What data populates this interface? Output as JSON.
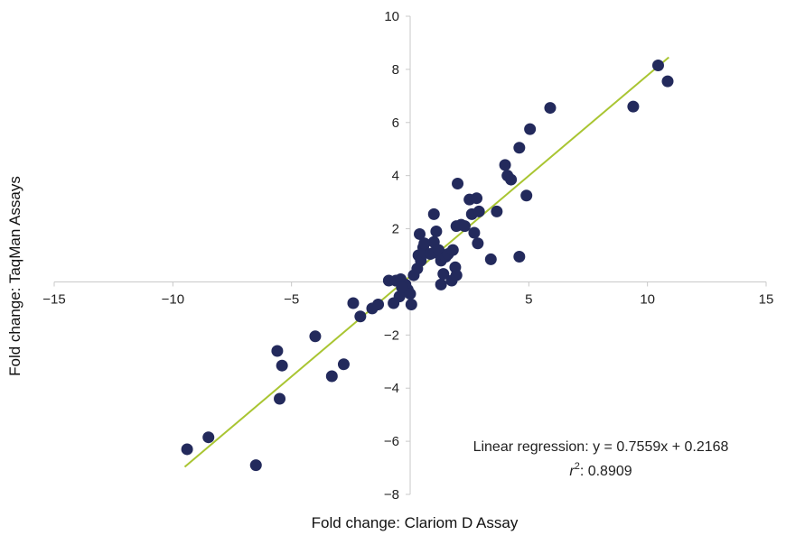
{
  "chart_data": {
    "type": "scatter",
    "title": "",
    "xlabel": "Fold change: Clariom D Assay",
    "ylabel": "Fold change: TaqMan Assays",
    "xlim": [
      -15,
      15
    ],
    "ylim": [
      -8,
      10
    ],
    "xticks": [
      -15,
      -10,
      -5,
      0,
      5,
      10,
      15
    ],
    "yticks": [
      -8,
      -6,
      -4,
      -2,
      0,
      2,
      4,
      6,
      8,
      10
    ],
    "xtick_labels": [
      "−15",
      "−10",
      "−5",
      "",
      "5",
      "10",
      "15"
    ],
    "ytick_labels": [
      "−8",
      "−6",
      "−4",
      "−2",
      "0",
      "2",
      "4",
      "6",
      "8",
      "10"
    ],
    "grid": false,
    "colors": {
      "points": "#232a5c",
      "trendline": "#a9c532",
      "axes": "#c8c8c8"
    },
    "regression": {
      "slope": 0.7559,
      "intercept": 0.2168,
      "x_range": [
        -9.5,
        10.9
      ]
    },
    "annotations": {
      "equation": "Linear regression: y = 0.7559x + 0.2168",
      "r2_symbol": "r",
      "r2_superscript": "2",
      "r2_value": ": 0.8909"
    },
    "points": [
      [
        -9.4,
        -6.3
      ],
      [
        -8.5,
        -5.85
      ],
      [
        -6.5,
        -6.9
      ],
      [
        -5.6,
        -2.6
      ],
      [
        -5.4,
        -3.15
      ],
      [
        -5.5,
        -4.4
      ],
      [
        -4.0,
        -2.05
      ],
      [
        -3.3,
        -3.55
      ],
      [
        -2.8,
        -3.1
      ],
      [
        -2.4,
        -0.8
      ],
      [
        -2.1,
        -1.3
      ],
      [
        -1.6,
        -1.0
      ],
      [
        -1.35,
        -0.85
      ],
      [
        -0.9,
        0.05
      ],
      [
        -0.6,
        0.05
      ],
      [
        -0.4,
        0.1
      ],
      [
        -0.2,
        -0.1
      ],
      [
        -0.1,
        -0.3
      ],
      [
        -0.45,
        -0.55
      ],
      [
        -0.7,
        -0.8
      ],
      [
        -0.35,
        -0.2
      ],
      [
        0.0,
        -0.45
      ],
      [
        0.05,
        -0.85
      ],
      [
        0.15,
        0.25
      ],
      [
        0.3,
        0.5
      ],
      [
        0.35,
        1.0
      ],
      [
        0.45,
        0.8
      ],
      [
        0.55,
        1.3
      ],
      [
        0.6,
        1.1
      ],
      [
        0.6,
        1.45
      ],
      [
        0.4,
        1.8
      ],
      [
        0.85,
        1.05
      ],
      [
        1.0,
        1.1
      ],
      [
        1.0,
        1.5
      ],
      [
        1.1,
        1.9
      ],
      [
        1.2,
        1.2
      ],
      [
        1.3,
        0.8
      ],
      [
        1.3,
        -0.1
      ],
      [
        1.4,
        0.3
      ],
      [
        1.5,
        0.95
      ],
      [
        1.6,
        1.05
      ],
      [
        1.75,
        0.05
      ],
      [
        1.8,
        1.2
      ],
      [
        1.9,
        0.55
      ],
      [
        1.95,
        0.25
      ],
      [
        1.95,
        2.1
      ],
      [
        2.0,
        3.7
      ],
      [
        2.15,
        2.15
      ],
      [
        2.3,
        2.1
      ],
      [
        1.0,
        2.55
      ],
      [
        2.5,
        3.1
      ],
      [
        2.6,
        2.55
      ],
      [
        2.7,
        1.85
      ],
      [
        2.8,
        3.15
      ],
      [
        2.85,
        1.45
      ],
      [
        2.9,
        2.65
      ],
      [
        3.4,
        0.85
      ],
      [
        3.65,
        2.65
      ],
      [
        4.0,
        4.4
      ],
      [
        4.1,
        4.0
      ],
      [
        4.25,
        3.85
      ],
      [
        4.6,
        5.05
      ],
      [
        4.6,
        0.95
      ],
      [
        4.9,
        3.25
      ],
      [
        5.05,
        5.75
      ],
      [
        5.9,
        6.55
      ],
      [
        9.4,
        6.6
      ],
      [
        10.45,
        8.15
      ],
      [
        10.85,
        7.55
      ]
    ]
  }
}
